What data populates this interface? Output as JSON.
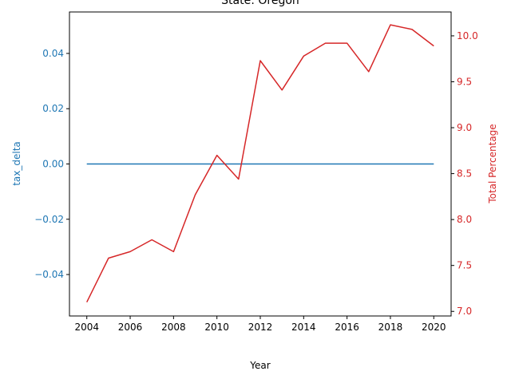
{
  "chart_data": {
    "type": "line",
    "title": "State: Oregon",
    "xlabel": "Year",
    "x": [
      2004,
      2005,
      2006,
      2007,
      2008,
      2009,
      2010,
      2011,
      2012,
      2013,
      2014,
      2015,
      2016,
      2017,
      2018,
      2019,
      2020
    ],
    "xticks": [
      2004,
      2006,
      2008,
      2010,
      2012,
      2014,
      2016,
      2018,
      2020
    ],
    "xlim": [
      2003.2,
      2020.8
    ],
    "left_axis": {
      "label": "tax_delta",
      "color": "#1f77b4",
      "ylim": [
        -0.055,
        0.055
      ],
      "ticks": [
        -0.04,
        -0.02,
        0.0,
        0.02,
        0.04
      ],
      "tick_labels": [
        "−0.04",
        "−0.02",
        "0.00",
        "0.02",
        "0.04"
      ]
    },
    "right_axis": {
      "label": "Total Percentage",
      "color": "#d62728",
      "ylim": [
        6.95,
        10.26
      ],
      "ticks": [
        7.0,
        7.5,
        8.0,
        8.5,
        9.0,
        9.5,
        10.0
      ],
      "tick_labels": [
        "7.0",
        "7.5",
        "8.0",
        "8.5",
        "9.0",
        "9.5",
        "10.0"
      ]
    },
    "series": [
      {
        "axis": "left",
        "color": "#1f77b4",
        "values": [
          0,
          0,
          0,
          0,
          0,
          0,
          0,
          0,
          0,
          0,
          0,
          0,
          0,
          0,
          0,
          0,
          0
        ]
      },
      {
        "axis": "right",
        "color": "#d62728",
        "values": [
          7.1,
          7.58,
          7.65,
          7.78,
          7.65,
          8.27,
          8.7,
          8.44,
          9.73,
          9.41,
          9.78,
          9.92,
          9.92,
          9.61,
          10.12,
          10.07,
          9.89
        ]
      }
    ]
  }
}
